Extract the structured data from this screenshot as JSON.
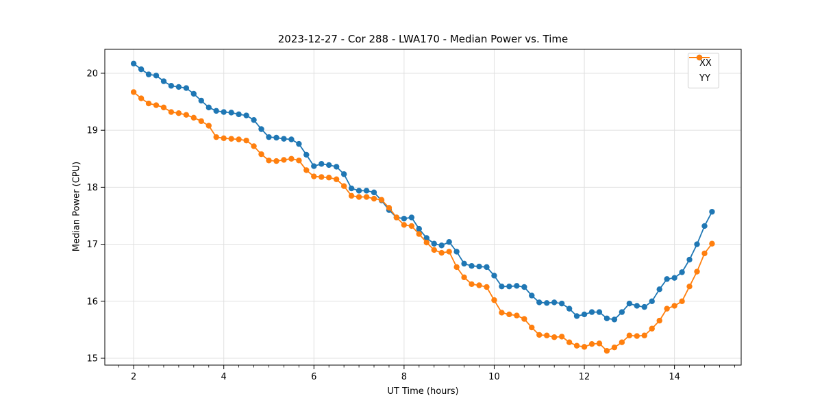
{
  "chart_data": {
    "type": "line",
    "title": "2023-12-27 - Cor 288 - LWA170 - Median Power vs. Time",
    "xlabel": "UT Time (hours)",
    "ylabel": "Median Power (CPU)",
    "xlim": [
      1.36,
      15.48
    ],
    "ylim": [
      14.88,
      20.42
    ],
    "xticks": [
      2,
      4,
      6,
      8,
      10,
      12,
      14
    ],
    "yticks": [
      15,
      16,
      17,
      18,
      19,
      20
    ],
    "x_minor_tick_step": 0.333,
    "grid": "major-both",
    "grid_color": "#e0e0e0",
    "legend_position": "upper right",
    "marker": "o",
    "x": [
      2.0,
      2.167,
      2.333,
      2.5,
      2.667,
      2.833,
      3.0,
      3.167,
      3.333,
      3.5,
      3.667,
      3.833,
      4.0,
      4.167,
      4.333,
      4.5,
      4.667,
      4.833,
      5.0,
      5.167,
      5.333,
      5.5,
      5.667,
      5.833,
      6.0,
      6.167,
      6.333,
      6.5,
      6.667,
      6.833,
      7.0,
      7.167,
      7.333,
      7.5,
      7.667,
      7.833,
      8.0,
      8.167,
      8.333,
      8.5,
      8.667,
      8.833,
      9.0,
      9.167,
      9.333,
      9.5,
      9.667,
      9.833,
      10.0,
      10.167,
      10.333,
      10.5,
      10.667,
      10.833,
      11.0,
      11.167,
      11.333,
      11.5,
      11.667,
      11.833,
      12.0,
      12.167,
      12.333,
      12.5,
      12.667,
      12.833,
      13.0,
      13.167,
      13.333,
      13.5,
      13.667,
      13.833,
      14.0,
      14.167,
      14.333,
      14.5,
      14.667,
      14.833
    ],
    "series": [
      {
        "name": "XX",
        "color": "#1f77b4",
        "values": [
          20.17,
          20.07,
          19.98,
          19.96,
          19.86,
          19.78,
          19.76,
          19.74,
          19.64,
          19.52,
          19.4,
          19.34,
          19.32,
          19.31,
          19.28,
          19.26,
          19.18,
          19.02,
          18.88,
          18.87,
          18.85,
          18.84,
          18.76,
          18.57,
          18.37,
          18.41,
          18.39,
          18.36,
          18.23,
          17.98,
          17.94,
          17.94,
          17.91,
          17.77,
          17.6,
          17.47,
          17.45,
          17.47,
          17.27,
          17.11,
          17.01,
          16.98,
          17.04,
          16.87,
          16.66,
          16.62,
          16.61,
          16.6,
          16.45,
          16.26,
          16.26,
          16.27,
          16.25,
          16.1,
          15.98,
          15.97,
          15.98,
          15.96,
          15.87,
          15.74,
          15.77,
          15.81,
          15.81,
          15.7,
          15.68,
          15.81,
          15.96,
          15.92,
          15.9,
          16.0,
          16.21,
          16.39,
          16.41,
          16.51,
          16.73,
          17.0,
          17.32,
          17.57
        ]
      },
      {
        "name": "YY",
        "color": "#ff7f0e",
        "values": [
          19.67,
          19.56,
          19.47,
          19.44,
          19.4,
          19.32,
          19.3,
          19.27,
          19.22,
          19.16,
          19.08,
          18.88,
          18.86,
          18.85,
          18.84,
          18.82,
          18.72,
          18.58,
          18.47,
          18.46,
          18.48,
          18.5,
          18.47,
          18.3,
          18.19,
          18.18,
          18.17,
          18.14,
          18.02,
          17.85,
          17.83,
          17.83,
          17.8,
          17.78,
          17.64,
          17.47,
          17.34,
          17.32,
          17.18,
          17.03,
          16.9,
          16.85,
          16.87,
          16.6,
          16.42,
          16.3,
          16.28,
          16.25,
          16.02,
          15.8,
          15.77,
          15.75,
          15.69,
          15.54,
          15.41,
          15.4,
          15.37,
          15.38,
          15.28,
          15.22,
          15.2,
          15.25,
          15.26,
          15.13,
          15.19,
          15.28,
          15.4,
          15.39,
          15.4,
          15.52,
          15.66,
          15.87,
          15.92,
          16.0,
          16.26,
          16.52,
          16.84,
          17.01
        ]
      }
    ]
  }
}
